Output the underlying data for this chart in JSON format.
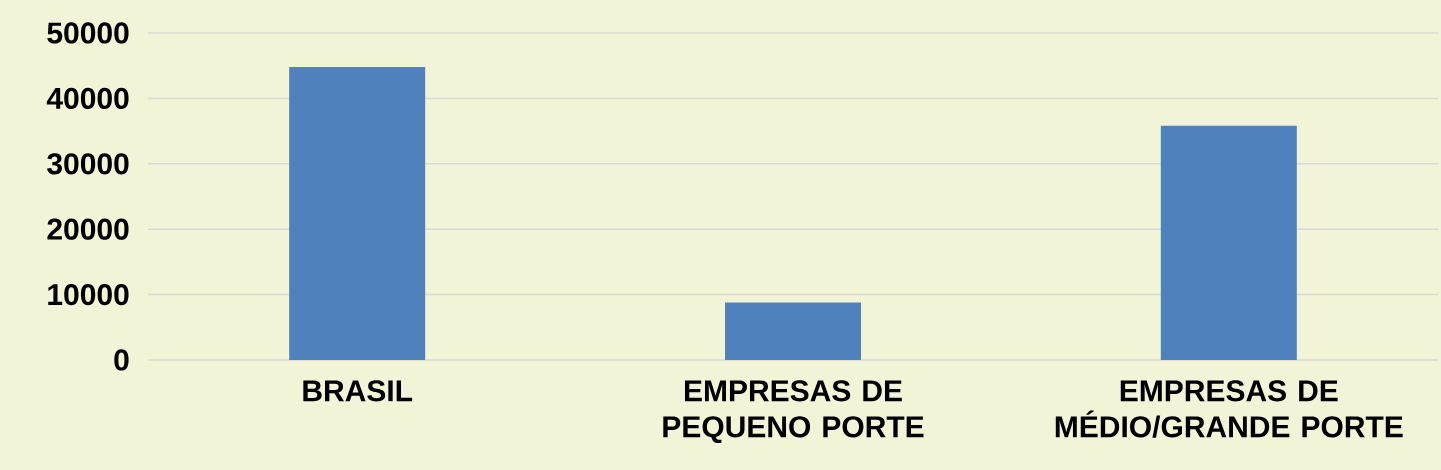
{
  "chart_data": {
    "type": "bar",
    "categories": [
      "BRASIL",
      "EMPRESAS DE PEQUENO PORTE",
      "EMPRESAS DE MÉDIO/GRANDE PORTE"
    ],
    "values": [
      44800,
      8800,
      35800
    ],
    "color": "#4f81bd",
    "ylim": [
      0,
      50000
    ],
    "yticks": [
      0,
      10000,
      20000,
      30000,
      40000,
      50000
    ],
    "grid": "y"
  }
}
